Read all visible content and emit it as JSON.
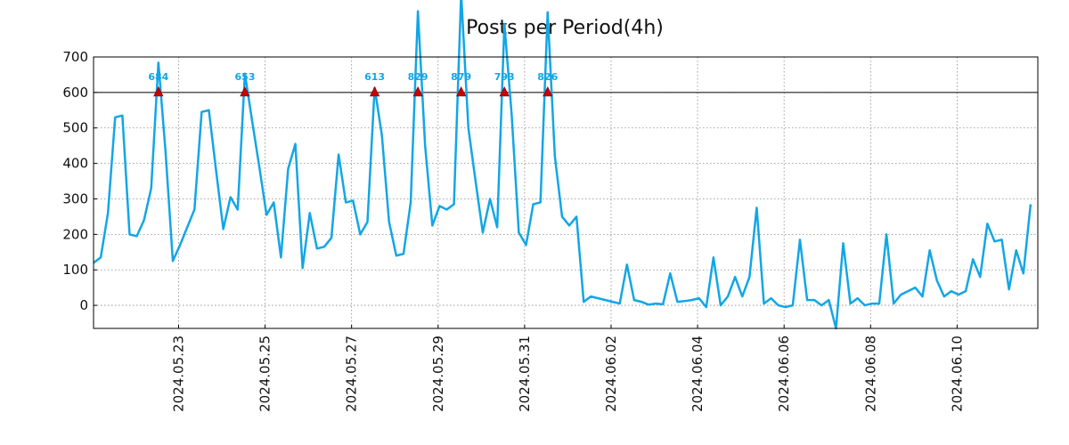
{
  "chart_data": {
    "type": "line",
    "title": "Posts per Period(4h)",
    "xlabel": "",
    "ylabel": "",
    "ylim": [
      -65,
      700
    ],
    "xlim": [
      0,
      131
    ],
    "yticks": [
      0,
      100,
      200,
      300,
      400,
      500,
      600,
      700
    ],
    "xticks": [
      {
        "label": "2024.05.23",
        "pos": 11.8
      },
      {
        "label": "2024.05.25",
        "pos": 23.8
      },
      {
        "label": "2024.05.27",
        "pos": 35.8
      },
      {
        "label": "2024.05.29",
        "pos": 47.8
      },
      {
        "label": "2024.05.31",
        "pos": 59.8
      },
      {
        "label": "2024.06.02",
        "pos": 71.8
      },
      {
        "label": "2024.06.04",
        "pos": 83.8
      },
      {
        "label": "2024.06.06",
        "pos": 95.8
      },
      {
        "label": "2024.06.08",
        "pos": 107.8
      },
      {
        "label": "2024.06.10",
        "pos": 119.8
      }
    ],
    "grid": true,
    "threshold": 600,
    "colors": {
      "line": "#12a6e6",
      "marker": "#cc0000",
      "annotation": "#12a6e6",
      "threshold": "#000000"
    },
    "series": [
      {
        "name": "posts",
        "values": [
          120,
          135,
          260,
          530,
          535,
          200,
          195,
          240,
          330,
          684,
          430,
          125,
          170,
          220,
          270,
          545,
          550,
          380,
          215,
          305,
          270,
          653,
          520,
          390,
          255,
          290,
          135,
          385,
          455,
          105,
          260,
          160,
          165,
          190,
          425,
          290,
          295,
          200,
          235,
          613,
          480,
          235,
          140,
          145,
          290,
          829,
          450,
          225,
          280,
          270,
          285,
          879,
          500,
          350,
          205,
          300,
          220,
          793,
          540,
          205,
          170,
          285,
          290,
          826,
          420,
          250,
          225,
          250,
          10,
          25,
          20,
          15,
          10,
          5,
          115,
          15,
          10,
          2,
          5,
          3,
          90,
          10,
          12,
          15,
          20,
          -5,
          135,
          0,
          25,
          80,
          25,
          80,
          275,
          5,
          20,
          0,
          -5,
          0,
          185,
          15,
          15,
          0,
          15,
          -65,
          175,
          5,
          20,
          0,
          5,
          5,
          200,
          5,
          30,
          40,
          50,
          25,
          155,
          70,
          25,
          40,
          30,
          40,
          130,
          80,
          230,
          180,
          185,
          45,
          155,
          90,
          285
        ]
      }
    ],
    "peaks": [
      {
        "index": 9,
        "label": "684"
      },
      {
        "index": 21,
        "label": "653"
      },
      {
        "index": 39,
        "label": "613"
      },
      {
        "index": 45,
        "label": "829"
      },
      {
        "index": 51,
        "label": "879"
      },
      {
        "index": 57,
        "label": "793"
      },
      {
        "index": 63,
        "label": "826"
      }
    ]
  }
}
